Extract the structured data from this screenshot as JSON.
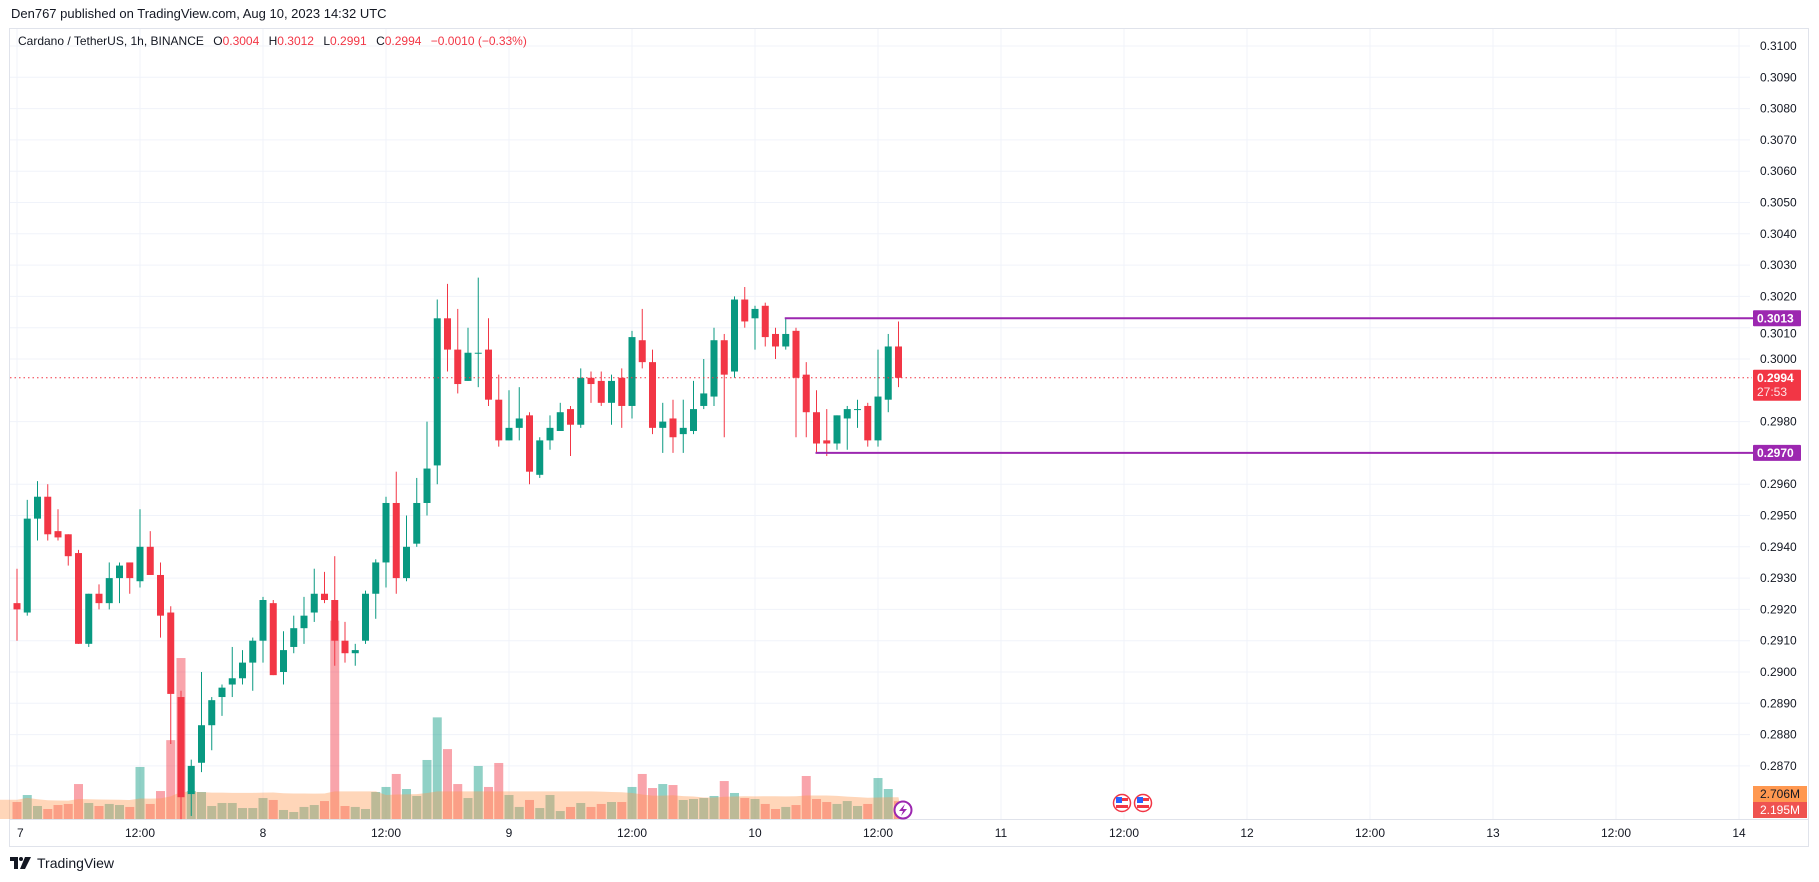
{
  "header": {
    "published": "Den767 published on TradingView.com, Aug 10, 2023 14:32 UTC"
  },
  "legend": {
    "symbol": "Cardano / TetherUS, 1h, BINANCE",
    "o_label": "O",
    "o_value": "0.3004",
    "h_label": "H",
    "h_value": "0.3012",
    "l_label": "L",
    "l_value": "0.2991",
    "c_label": "C",
    "c_value": "0.2994",
    "change": "−0.0010 (−0.33%)"
  },
  "colors": {
    "up": "#089981",
    "down": "#f23645",
    "level": "#9c27b0",
    "ma": "#ff9850",
    "vol_label": "#ef5350"
  },
  "price_axis": {
    "labels": [
      "0.3100",
      "0.3090",
      "0.3080",
      "0.3070",
      "0.3060",
      "0.3050",
      "0.3040",
      "0.3030",
      "0.3020",
      "0.3010",
      "0.3000",
      "0.2980",
      "0.2960",
      "0.2950",
      "0.2940",
      "0.2930",
      "0.2920",
      "0.2910",
      "0.2900",
      "0.2890",
      "0.2880",
      "0.2870"
    ],
    "current_price": "0.2994",
    "countdown": "27:53",
    "level_badges": [
      "0.3013",
      "0.2970"
    ],
    "volume_ma_label": "2.706M",
    "volume_label": "2.195M"
  },
  "time_axis": {
    "labels": [
      "7",
      "12:00",
      "8",
      "12:00",
      "9",
      "12:00",
      "10",
      "12:00",
      "11",
      "12:00",
      "12",
      "12:00",
      "13",
      "12:00",
      "14"
    ]
  },
  "events": {
    "icons": [
      "us-flag-icon",
      "us-flag-icon"
    ],
    "lightning": "lightning-icon"
  },
  "branding": {
    "logo_text": "TradingView"
  },
  "chart_data": {
    "type": "candlestick",
    "title": "Cardano / TetherUS, 1h, BINANCE",
    "interval": "1h",
    "first_bar": "Aug 7 00:00",
    "ylim": [
      0.285,
      0.3105
    ],
    "grid": true,
    "levels": [
      {
        "price": 0.3013,
        "from_bar": 75
      },
      {
        "price": 0.297,
        "from_bar": 78
      }
    ],
    "ohlc": [
      [
        0.2922,
        0.2933,
        0.291,
        0.292
      ],
      [
        0.2919,
        0.2955,
        0.2918,
        0.2949
      ],
      [
        0.2949,
        0.2961,
        0.2942,
        0.2956
      ],
      [
        0.2956,
        0.296,
        0.2942,
        0.2944
      ],
      [
        0.2945,
        0.2952,
        0.2942,
        0.2943
      ],
      [
        0.2944,
        0.2944,
        0.2934,
        0.2937
      ],
      [
        0.2938,
        0.2939,
        0.2909,
        0.2909
      ],
      [
        0.2909,
        0.2925,
        0.2908,
        0.2925
      ],
      [
        0.2925,
        0.2928,
        0.292,
        0.2922
      ],
      [
        0.2922,
        0.2935,
        0.292,
        0.293
      ],
      [
        0.293,
        0.2935,
        0.2922,
        0.2934
      ],
      [
        0.2935,
        0.2935,
        0.2925,
        0.293
      ],
      [
        0.2929,
        0.2952,
        0.2927,
        0.294
      ],
      [
        0.294,
        0.2945,
        0.2931,
        0.2931
      ],
      [
        0.2931,
        0.2935,
        0.2911,
        0.2918
      ],
      [
        0.2919,
        0.2921,
        0.2877,
        0.2893
      ],
      [
        0.2892,
        0.2894,
        0.2853,
        0.286
      ],
      [
        0.2861,
        0.2872,
        0.2854,
        0.287
      ],
      [
        0.2871,
        0.29,
        0.2868,
        0.2883
      ],
      [
        0.2883,
        0.2892,
        0.2875,
        0.2891
      ],
      [
        0.2892,
        0.2896,
        0.2886,
        0.2895
      ],
      [
        0.2896,
        0.2908,
        0.2892,
        0.2898
      ],
      [
        0.2898,
        0.2907,
        0.2896,
        0.2903
      ],
      [
        0.2903,
        0.2911,
        0.2894,
        0.291
      ],
      [
        0.291,
        0.2924,
        0.2903,
        0.2923
      ],
      [
        0.2922,
        0.2923,
        0.2899,
        0.2899
      ],
      [
        0.29,
        0.2913,
        0.2896,
        0.2907
      ],
      [
        0.2908,
        0.2918,
        0.2906,
        0.2914
      ],
      [
        0.2914,
        0.2924,
        0.2909,
        0.2918
      ],
      [
        0.2919,
        0.2933,
        0.2916,
        0.2925
      ],
      [
        0.2925,
        0.2932,
        0.2922,
        0.2923
      ],
      [
        0.2923,
        0.2937,
        0.2902,
        0.291
      ],
      [
        0.291,
        0.2916,
        0.2903,
        0.2906
      ],
      [
        0.2906,
        0.2909,
        0.2902,
        0.2907
      ],
      [
        0.291,
        0.2926,
        0.2909,
        0.2925
      ],
      [
        0.2925,
        0.2936,
        0.2917,
        0.2935
      ],
      [
        0.2935,
        0.2956,
        0.2927,
        0.2954
      ],
      [
        0.2954,
        0.2964,
        0.2925,
        0.293
      ],
      [
        0.293,
        0.295,
        0.2929,
        0.294
      ],
      [
        0.2941,
        0.2962,
        0.294,
        0.2954
      ],
      [
        0.2954,
        0.298,
        0.295,
        0.2965
      ],
      [
        0.2966,
        0.3019,
        0.296,
        0.3013
      ],
      [
        0.3013,
        0.3024,
        0.2996,
        0.3003
      ],
      [
        0.3003,
        0.3016,
        0.2989,
        0.2992
      ],
      [
        0.2993,
        0.301,
        0.2993,
        0.3002
      ],
      [
        0.3002,
        0.3026,
        0.2991,
        0.3002
      ],
      [
        0.3003,
        0.3013,
        0.2985,
        0.2987
      ],
      [
        0.2987,
        0.2995,
        0.2972,
        0.2974
      ],
      [
        0.2974,
        0.299,
        0.2974,
        0.2978
      ],
      [
        0.2978,
        0.2991,
        0.2974,
        0.2981
      ],
      [
        0.2982,
        0.2983,
        0.296,
        0.2964
      ],
      [
        0.2963,
        0.2975,
        0.2962,
        0.2974
      ],
      [
        0.2974,
        0.2982,
        0.2971,
        0.2978
      ],
      [
        0.2977,
        0.2986,
        0.2977,
        0.2983
      ],
      [
        0.2984,
        0.2985,
        0.2969,
        0.2979
      ],
      [
        0.2979,
        0.2997,
        0.2978,
        0.2994
      ],
      [
        0.2994,
        0.2996,
        0.2986,
        0.2992
      ],
      [
        0.2993,
        0.2996,
        0.2985,
        0.2986
      ],
      [
        0.2986,
        0.2995,
        0.2979,
        0.2993
      ],
      [
        0.2994,
        0.2997,
        0.2978,
        0.2985
      ],
      [
        0.2985,
        0.3009,
        0.2981,
        0.3007
      ],
      [
        0.3006,
        0.3016,
        0.2997,
        0.2999
      ],
      [
        0.2999,
        0.3003,
        0.2976,
        0.2978
      ],
      [
        0.2978,
        0.2986,
        0.297,
        0.298
      ],
      [
        0.2981,
        0.2987,
        0.297,
        0.2975
      ],
      [
        0.2976,
        0.2987,
        0.297,
        0.2978
      ],
      [
        0.2977,
        0.2993,
        0.2976,
        0.2984
      ],
      [
        0.2985,
        0.3,
        0.2984,
        0.2989
      ],
      [
        0.2988,
        0.301,
        0.2985,
        0.3006
      ],
      [
        0.3006,
        0.3008,
        0.2975,
        0.2995
      ],
      [
        0.2996,
        0.302,
        0.2994,
        0.3019
      ],
      [
        0.3019,
        0.3023,
        0.301,
        0.3012
      ],
      [
        0.3013,
        0.3017,
        0.3003,
        0.3016
      ],
      [
        0.3017,
        0.3018,
        0.3004,
        0.3007
      ],
      [
        0.3008,
        0.301,
        0.3,
        0.3004
      ],
      [
        0.3004,
        0.3013,
        0.3003,
        0.3008
      ],
      [
        0.3009,
        0.301,
        0.2975,
        0.2994
      ],
      [
        0.2995,
        0.2999,
        0.2975,
        0.2983
      ],
      [
        0.2983,
        0.299,
        0.297,
        0.2973
      ],
      [
        0.2974,
        0.2984,
        0.2969,
        0.2973
      ],
      [
        0.2973,
        0.2982,
        0.2971,
        0.2982
      ],
      [
        0.2981,
        0.2985,
        0.2971,
        0.2984
      ],
      [
        0.2984,
        0.2987,
        0.2978,
        0.2984
      ],
      [
        0.2985,
        0.2986,
        0.2972,
        0.2974
      ],
      [
        0.2974,
        0.3003,
        0.2972,
        0.2988
      ],
      [
        0.2987,
        0.3008,
        0.2983,
        0.3004
      ],
      [
        0.3004,
        0.3012,
        0.2991,
        0.2994
      ]
    ],
    "volume_millions": [
      2.09,
      2.95,
      1.6,
      1.23,
      1.72,
      1.85,
      4.3,
      1.97,
      1.6,
      1.85,
      1.72,
      1.48,
      6.4,
      1.85,
      3.44,
      9.7,
      19.8,
      3.44,
      3.32,
      1.6,
      1.97,
      1.97,
      1.35,
      1.35,
      2.58,
      2.34,
      1.11,
      0.86,
      1.48,
      1.72,
      2.21,
      24.4,
      1.6,
      1.48,
      1.23,
      3.32,
      3.94,
      5.54,
      3.69,
      2.83,
      7.26,
      12.5,
      8.6,
      4.3,
      2.58,
      6.52,
      3.94,
      6.89,
      2.95,
      1.48,
      2.34,
      1.35,
      2.95,
      0.98,
      1.48,
      1.97,
      1.48,
      1.85,
      2.09,
      2.09,
      3.94,
      5.54,
      3.81,
      4.3,
      4.18,
      2.34,
      2.46,
      2.58,
      2.83,
      4.67,
      3.2,
      2.58,
      2.46,
      1.85,
      1.23,
      1.48,
      1.72,
      5.29,
      2.46,
      2.09,
      1.85,
      2.21,
      1.6,
      1.85,
      5.04,
      3.69,
      2.195
    ],
    "volume_ma_last_millions": 2.706
  }
}
